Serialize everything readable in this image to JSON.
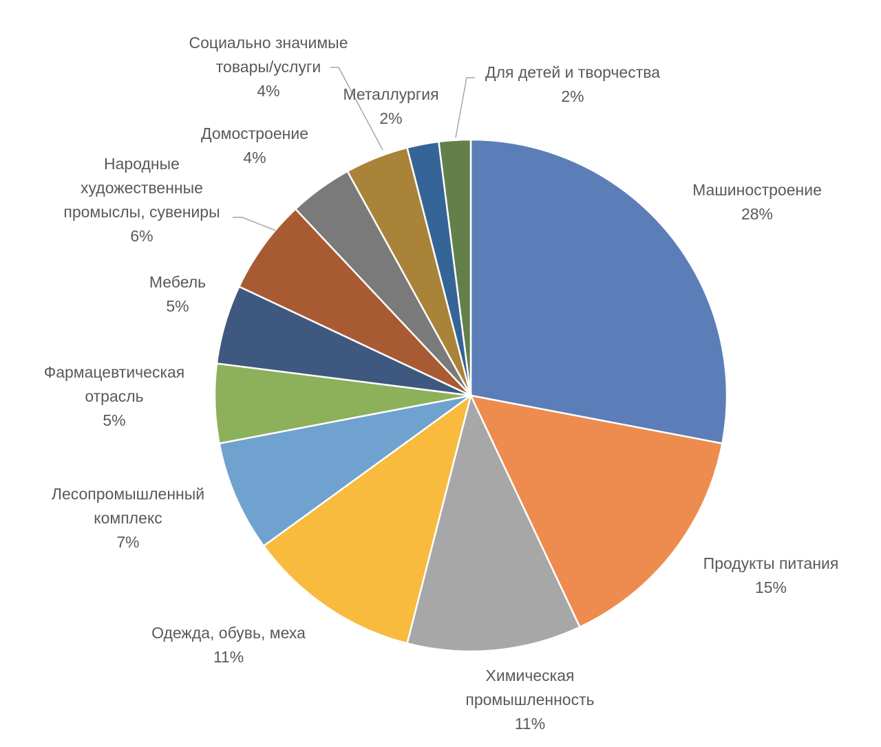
{
  "chart_data": {
    "type": "pie",
    "title": "",
    "start": "12 o'clock",
    "direction": "clockwise",
    "legend": "none",
    "data_labels": "category name and percentage",
    "slices": [
      {
        "label": "Машиностроение",
        "value_label": "28%",
        "value": 28,
        "color": "#5b7eb8"
      },
      {
        "label": "Продукты питания",
        "value_label": "15%",
        "value": 15,
        "color": "#ed8c4e"
      },
      {
        "label": "Химическая промышленность",
        "value_label": "11%",
        "value": 11,
        "color": "#a7a7a7"
      },
      {
        "label": "Одежда, обувь, меха",
        "value_label": "11%",
        "value": 11,
        "color": "#f8bb3e"
      },
      {
        "label": "Лесопромышленный комплекс",
        "value_label": "7%",
        "value": 7,
        "color": "#70a2cf"
      },
      {
        "label": "Фармацевтическая отрасль",
        "value_label": "5%",
        "value": 5,
        "color": "#8db05a"
      },
      {
        "label": "Мебель",
        "value_label": "5%",
        "value": 5,
        "color": "#3f587f"
      },
      {
        "label": "Народные художественные промыслы, сувениры",
        "value_label": "6%",
        "value": 6,
        "color": "#a85b32"
      },
      {
        "label": "Домостроение",
        "value_label": "4%",
        "value": 4,
        "color": "#7a7a7a"
      },
      {
        "label": "Социально значимые товары/услуги",
        "value_label": "4%",
        "value": 4,
        "color": "#a98338"
      },
      {
        "label": "Металлургия",
        "value_label": "2%",
        "value": 2,
        "color": "#356596"
      },
      {
        "label": "Для детей и творчества",
        "value_label": "2%",
        "value": 2,
        "color": "#63804a"
      }
    ]
  }
}
